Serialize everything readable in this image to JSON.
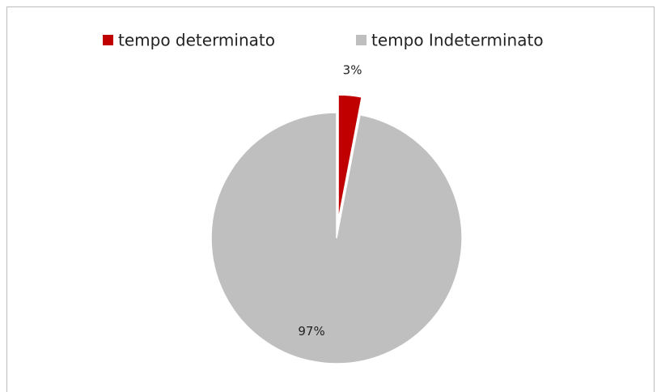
{
  "chart_data": {
    "type": "pie",
    "categories": [
      "tempo determinato",
      "tempo Indeterminato"
    ],
    "values": [
      3,
      97
    ],
    "value_labels": [
      "3%",
      "97%"
    ],
    "colors": [
      "#c00000",
      "#bfbfbf"
    ],
    "legend": "top"
  }
}
